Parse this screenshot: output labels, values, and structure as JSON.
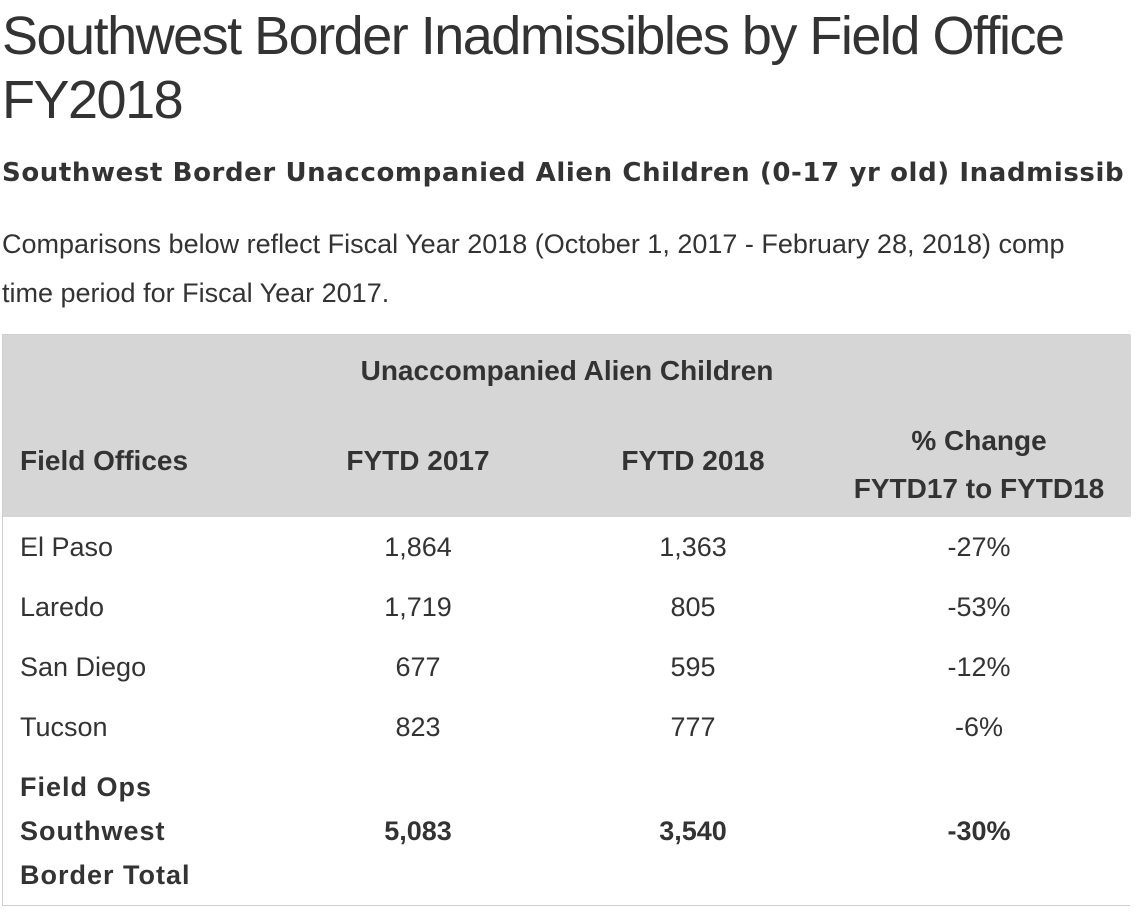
{
  "title": {
    "line1": "Southwest Border Inadmissibles by Field Office",
    "line2": "FY2018"
  },
  "subtitle": "Southwest Border Unaccompanied Alien Children (0-17 yr old) Inadmissib",
  "intro": {
    "line1": "Comparisons below reflect Fiscal Year 2018 (October 1, 2017 - February 28, 2018) comp",
    "line2": "time period for Fiscal Year 2017."
  },
  "table": {
    "group_header": "Unaccompanied Alien Children",
    "headers": {
      "field_offices": "Field Offices",
      "fytd2017": "FYTD 2017",
      "fytd2018": "FYTD 2018",
      "change_line1": "% Change",
      "change_line2": "FYTD17 to FYTD18"
    },
    "rows": [
      {
        "name": "El Paso",
        "fytd2017": "1,864",
        "fytd2018": "1,363",
        "change": "-27%"
      },
      {
        "name": "Laredo",
        "fytd2017": "1,719",
        "fytd2018": "805",
        "change": "-53%"
      },
      {
        "name": "San Diego",
        "fytd2017": "677",
        "fytd2018": "595",
        "change": "-12%"
      },
      {
        "name": "Tucson",
        "fytd2017": "823",
        "fytd2018": "777",
        "change": "-6%"
      }
    ],
    "total": {
      "name_line1": "Field Ops",
      "name_line2": "Southwest",
      "name_line3": "Border Total",
      "fytd2017": "5,083",
      "fytd2018": "3,540",
      "change": "-30%"
    }
  }
}
